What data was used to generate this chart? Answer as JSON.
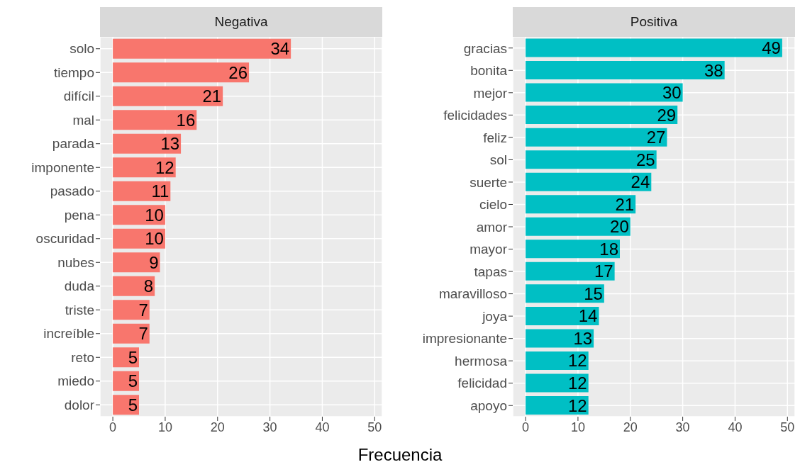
{
  "chart_data": [
    {
      "type": "bar",
      "orientation": "horizontal",
      "title": "Negativa",
      "xlabel": "Frecuencia",
      "categories": [
        "solo",
        "tiempo",
        "difícil",
        "mal",
        "parada",
        "imponente",
        "pasado",
        "pena",
        "oscuridad",
        "nubes",
        "duda",
        "triste",
        "increíble",
        "reto",
        "miedo",
        "dolor"
      ],
      "values": [
        34,
        26,
        21,
        16,
        13,
        12,
        11,
        10,
        10,
        9,
        8,
        7,
        7,
        5,
        5,
        5
      ],
      "color": "#f8766d",
      "xlim": [
        -2.45,
        51.45
      ],
      "xticks": [
        0,
        10,
        20,
        30,
        40,
        50
      ],
      "grid": true,
      "data_labels": true
    },
    {
      "type": "bar",
      "orientation": "horizontal",
      "title": "Positiva",
      "categories": [
        "gracias",
        "bonita",
        "mejor",
        "felicidades",
        "feliz",
        "sol",
        "suerte",
        "cielo",
        "amor",
        "mayor",
        "tapas",
        "maravilloso",
        "joya",
        "impresionante",
        "hermosa",
        "felicidad",
        "apoyo"
      ],
      "values": [
        49,
        38,
        30,
        29,
        27,
        25,
        24,
        21,
        20,
        18,
        17,
        15,
        14,
        13,
        12,
        12,
        12
      ],
      "color": "#00bfc4",
      "xlim": [
        -2.45,
        51.45
      ],
      "xticks": [
        0,
        10,
        20,
        30,
        40,
        50
      ],
      "grid": true,
      "data_labels": true
    }
  ]
}
